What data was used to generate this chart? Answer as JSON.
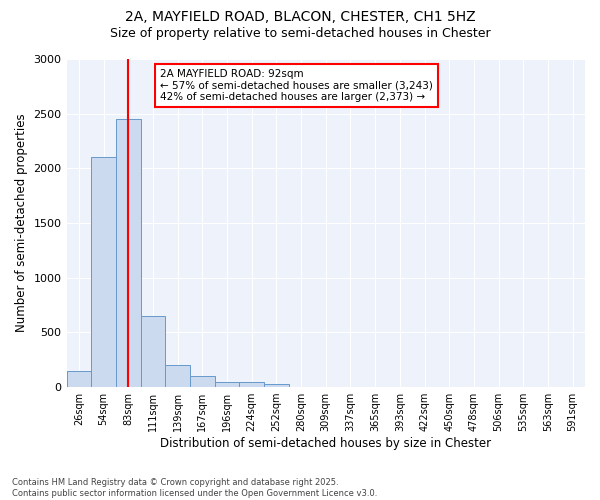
{
  "title_line1": "2A, MAYFIELD ROAD, BLACON, CHESTER, CH1 5HZ",
  "title_line2": "Size of property relative to semi-detached houses in Chester",
  "xlabel": "Distribution of semi-detached houses by size in Chester",
  "ylabel": "Number of semi-detached properties",
  "categories": [
    "26sqm",
    "54sqm",
    "83sqm",
    "111sqm",
    "139sqm",
    "167sqm",
    "196sqm",
    "224sqm",
    "252sqm",
    "280sqm",
    "309sqm",
    "337sqm",
    "365sqm",
    "393sqm",
    "422sqm",
    "450sqm",
    "478sqm",
    "506sqm",
    "535sqm",
    "563sqm",
    "591sqm"
  ],
  "values": [
    150,
    2100,
    2450,
    650,
    200,
    100,
    50,
    45,
    30,
    0,
    0,
    0,
    0,
    0,
    0,
    0,
    0,
    0,
    0,
    0,
    0
  ],
  "bar_color": "#ccdaf0",
  "bar_edge_color": "#6699cc",
  "red_line_x": 2.0,
  "annotation_title": "2A MAYFIELD ROAD: 92sqm",
  "annotation_line2": "← 57% of semi-detached houses are smaller (3,243)",
  "annotation_line3": "42% of semi-detached houses are larger (2,373) →",
  "ylim": [
    0,
    3000
  ],
  "yticks": [
    0,
    500,
    1000,
    1500,
    2000,
    2500,
    3000
  ],
  "background_color": "#edf2fb",
  "footer_line1": "Contains HM Land Registry data © Crown copyright and database right 2025.",
  "footer_line2": "Contains public sector information licensed under the Open Government Licence v3.0."
}
